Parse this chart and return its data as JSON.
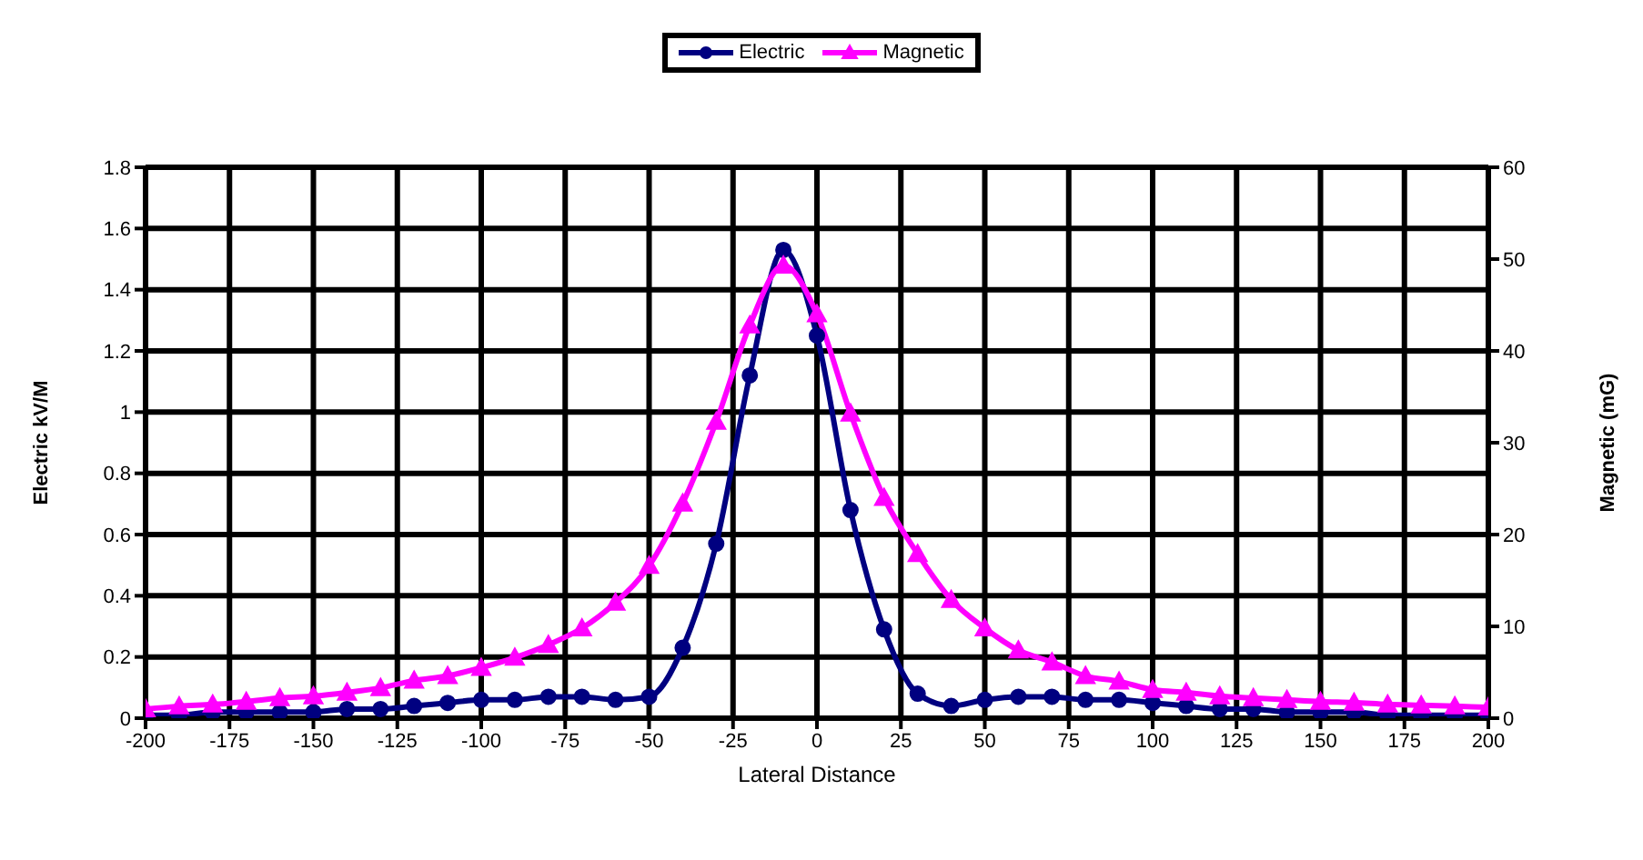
{
  "chart_data": {
    "type": "line",
    "xlabel": "Lateral Distance",
    "ylabel": "Electric kV/M",
    "y2label": "Magnetic (mG)",
    "x": [
      -200,
      -190,
      -180,
      -170,
      -160,
      -150,
      -140,
      -130,
      -120,
      -110,
      -100,
      -90,
      -80,
      -70,
      -60,
      -50,
      -40,
      -30,
      -20,
      -10,
      0,
      10,
      20,
      30,
      40,
      50,
      60,
      70,
      80,
      90,
      100,
      110,
      120,
      130,
      140,
      150,
      160,
      170,
      180,
      190,
      200
    ],
    "series": [
      {
        "name": "Electric",
        "color": "#000080",
        "marker": "circle",
        "values": [
          0.01,
          0.01,
          0.02,
          0.02,
          0.02,
          0.02,
          0.03,
          0.03,
          0.04,
          0.05,
          0.06,
          0.06,
          0.07,
          0.07,
          0.06,
          0.07,
          0.23,
          0.57,
          1.12,
          1.53,
          1.25,
          0.68,
          0.29,
          0.08,
          0.04,
          0.06,
          0.07,
          0.07,
          0.06,
          0.06,
          0.05,
          0.04,
          0.03,
          0.03,
          0.02,
          0.02,
          0.02,
          0.01,
          0.01,
          0.01,
          0.01
        ]
      },
      {
        "name": "Magnetic",
        "color": "#ff00ff",
        "marker": "triangle",
        "axis": "y2",
        "values": [
          1.0,
          1.3,
          1.5,
          1.8,
          2.2,
          2.4,
          2.8,
          3.3,
          4.1,
          4.6,
          5.5,
          6.6,
          8.0,
          9.8,
          12.6,
          16.6,
          23.4,
          32.3,
          42.8,
          49.3,
          44,
          33.2,
          24,
          17.9,
          12.9,
          9.8,
          7.4,
          6.1,
          4.6,
          4,
          3.1,
          2.8,
          2.4,
          2.2,
          2,
          1.8,
          1.7,
          1.5,
          1.4,
          1.3,
          1.2
        ]
      }
    ],
    "xlim": [
      -200,
      200
    ],
    "xticks": [
      -200,
      -175,
      -150,
      -125,
      -100,
      -75,
      -50,
      -25,
      0,
      25,
      50,
      75,
      100,
      125,
      150,
      175,
      200
    ],
    "ylim": [
      0,
      1.8
    ],
    "yticks": [
      0,
      0.2,
      0.4,
      0.6,
      0.8,
      1,
      1.2,
      1.4,
      1.6,
      1.8
    ],
    "y2lim": [
      0,
      60
    ],
    "y2ticks": [
      0,
      10,
      20,
      30,
      40,
      50,
      60
    ],
    "grid": true,
    "legend": "top",
    "line_style": "solid"
  }
}
